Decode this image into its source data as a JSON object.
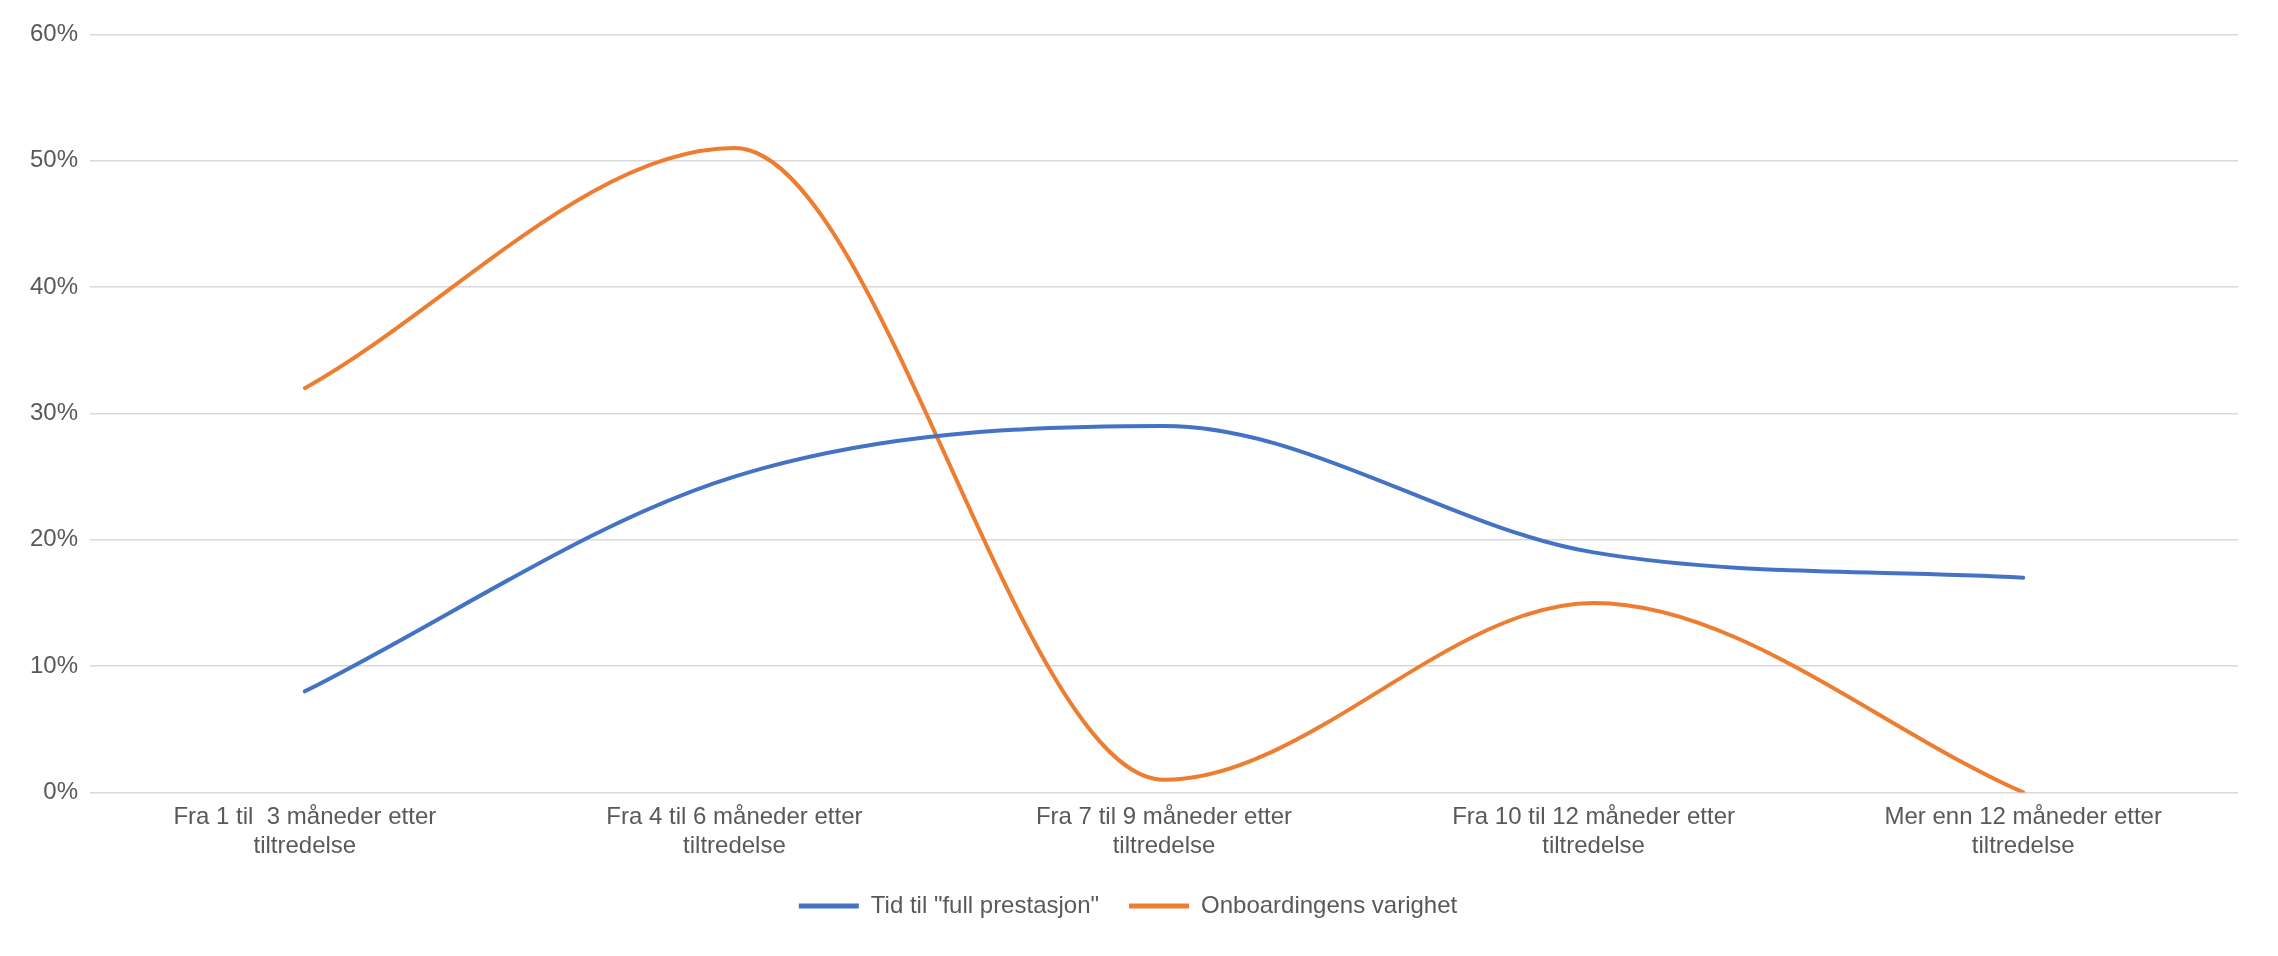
{
  "chart_data": {
    "type": "line",
    "categories": [
      "Fra 1 til  3 måneder etter tiltredelse",
      "Fra 4 til 6 måneder etter tiltredelse",
      "Fra 7 til 9 måneder etter tiltredelse",
      "Fra 10 til 12 måneder etter tiltredelse",
      "Mer enn 12 måneder etter tiltredelse"
    ],
    "series": [
      {
        "name": "Tid til \"full prestasjon\"",
        "color": "#4472c4",
        "values": [
          8,
          25,
          29,
          19,
          17
        ]
      },
      {
        "name": "Onboardingens varighet",
        "color": "#ed7d31",
        "values": [
          32,
          51,
          1,
          15,
          0
        ]
      }
    ],
    "ylim": [
      0,
      60
    ],
    "yticks": [
      {
        "value": 0,
        "label": "0%"
      },
      {
        "value": 10,
        "label": "10%"
      },
      {
        "value": 20,
        "label": "20%"
      },
      {
        "value": 30,
        "label": "30%"
      },
      {
        "value": 40,
        "label": "40%"
      },
      {
        "value": 50,
        "label": "50%"
      },
      {
        "value": 60,
        "label": "60%"
      }
    ],
    "grid": "y",
    "legend": "bottom",
    "marker": "none",
    "line_style": "solid"
  }
}
